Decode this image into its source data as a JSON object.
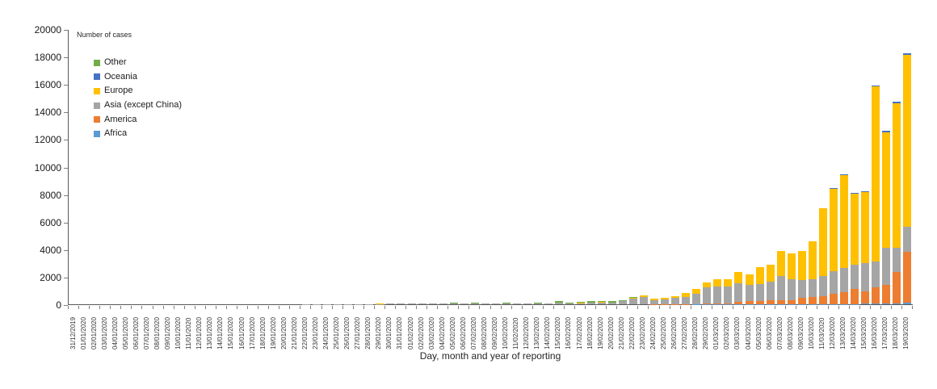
{
  "chart_data": {
    "type": "bar",
    "stacked": true,
    "title": "",
    "y_axis_title": "Number of cases",
    "x_axis_title": "Day, month and year of reporting",
    "ylim": [
      0,
      20000
    ],
    "y_tick_step": 2000,
    "y_ticks": [
      0,
      2000,
      4000,
      6000,
      8000,
      10000,
      12000,
      14000,
      16000,
      18000,
      20000
    ],
    "grid": false,
    "legend_position": "top-left-inside",
    "legend_order_top_to_bottom": [
      "Other",
      "Oceania",
      "Europe",
      "Asia (except China)",
      "America",
      "Africa"
    ],
    "categories": [
      "31/12/2019",
      "01/01/2020",
      "02/01/2020",
      "03/01/2020",
      "04/01/2020",
      "05/01/2020",
      "06/01/2020",
      "07/01/2020",
      "08/01/2020",
      "09/01/2020",
      "10/01/2020",
      "11/01/2020",
      "12/01/2020",
      "13/01/2020",
      "14/01/2020",
      "15/01/2020",
      "16/01/2020",
      "17/01/2020",
      "18/01/2020",
      "19/01/2020",
      "20/01/2020",
      "21/01/2020",
      "22/01/2020",
      "23/01/2020",
      "24/01/2020",
      "25/01/2020",
      "26/01/2020",
      "27/01/2020",
      "28/01/2020",
      "29/01/2020",
      "30/01/2020",
      "31/01/2020",
      "01/02/2020",
      "02/02/2020",
      "03/02/2020",
      "04/02/2020",
      "05/02/2020",
      "06/02/2020",
      "07/02/2020",
      "08/02/2020",
      "09/02/2020",
      "10/02/2020",
      "11/02/2020",
      "12/02/2020",
      "13/02/2020",
      "14/02/2020",
      "15/02/2020",
      "16/02/2020",
      "17/02/2020",
      "18/02/2020",
      "19/02/2020",
      "20/02/2020",
      "21/02/2020",
      "22/02/2020",
      "23/02/2020",
      "24/02/2020",
      "25/02/2020",
      "26/02/2020",
      "27/02/2020",
      "28/02/2020",
      "29/02/2020",
      "01/03/2020",
      "02/03/2020",
      "03/03/2020",
      "04/03/2020",
      "05/03/2020",
      "06/03/2020",
      "07/03/2020",
      "08/03/2020",
      "09/03/2020",
      "10/03/2020",
      "11/03/2020",
      "12/03/2020",
      "13/03/2020",
      "14/03/2020",
      "15/03/2020",
      "16/03/2020",
      "17/03/2020",
      "18/03/2020",
      "19/03/2020"
    ],
    "series": [
      {
        "name": "Africa",
        "color": "#5B9BD5",
        "values": [
          0,
          0,
          0,
          0,
          0,
          0,
          0,
          0,
          0,
          0,
          0,
          0,
          0,
          0,
          0,
          0,
          0,
          0,
          0,
          0,
          0,
          0,
          0,
          0,
          0,
          0,
          0,
          0,
          0,
          0,
          0,
          0,
          0,
          0,
          0,
          0,
          0,
          0,
          0,
          0,
          0,
          0,
          0,
          0,
          0,
          0,
          0,
          0,
          0,
          0,
          0,
          0,
          0,
          0,
          0,
          0,
          0,
          0,
          0,
          5,
          5,
          5,
          10,
          5,
          10,
          10,
          10,
          10,
          15,
          15,
          15,
          20,
          20,
          30,
          30,
          40,
          50,
          60,
          60,
          120
        ]
      },
      {
        "name": "America",
        "color": "#ED7D31",
        "values": [
          0,
          0,
          0,
          0,
          0,
          0,
          0,
          0,
          0,
          0,
          0,
          0,
          0,
          0,
          0,
          0,
          0,
          0,
          0,
          0,
          0,
          1,
          1,
          1,
          2,
          1,
          3,
          2,
          2,
          1,
          1,
          2,
          2,
          1,
          2,
          1,
          2,
          1,
          1,
          1,
          1,
          1,
          2,
          1,
          2,
          2,
          1,
          1,
          2,
          1,
          2,
          1,
          2,
          2,
          3,
          5,
          10,
          15,
          10,
          25,
          50,
          60,
          70,
          170,
          225,
          225,
          265,
          300,
          280,
          455,
          495,
          550,
          740,
          870,
          1065,
          920,
          1160,
          1340,
          2280,
          3680
        ]
      },
      {
        "name": "Asia (except China)",
        "color": "#A5A5A5",
        "values": [
          0,
          0,
          0,
          0,
          0,
          0,
          0,
          0,
          0,
          0,
          0,
          0,
          0,
          1,
          1,
          1,
          1,
          2,
          2,
          2,
          3,
          4,
          5,
          8,
          8,
          10,
          12,
          15,
          22,
          22,
          30,
          35,
          55,
          45,
          40,
          45,
          45,
          35,
          55,
          45,
          55,
          45,
          40,
          35,
          45,
          55,
          110,
          60,
          85,
          125,
          145,
          135,
          240,
          430,
          520,
          300,
          330,
          430,
          540,
          720,
          1160,
          1225,
          1210,
          1365,
          1175,
          1215,
          1365,
          1760,
          1545,
          1270,
          1325,
          1500,
          1660,
          1720,
          1760,
          2050,
          1900,
          2680,
          1760,
          1855
        ]
      },
      {
        "name": "Europe",
        "color": "#FFC000",
        "values": [
          0,
          0,
          0,
          0,
          0,
          0,
          0,
          0,
          0,
          0,
          0,
          0,
          0,
          0,
          0,
          0,
          0,
          0,
          0,
          0,
          0,
          0,
          0,
          0,
          3,
          2,
          0,
          1,
          5,
          8,
          2,
          8,
          10,
          5,
          5,
          2,
          2,
          3,
          5,
          8,
          3,
          5,
          3,
          2,
          2,
          3,
          15,
          2,
          3,
          2,
          3,
          3,
          5,
          58,
          127,
          110,
          120,
          150,
          250,
          340,
          370,
          510,
          545,
          790,
          780,
          1265,
          1215,
          1820,
          1840,
          2150,
          2740,
          4890,
          5970,
          6780,
          5180,
          5140,
          12750,
          8440,
          10530,
          12450
        ]
      },
      {
        "name": "Oceania",
        "color": "#4472C4",
        "values": [
          0,
          0,
          0,
          0,
          0,
          0,
          0,
          0,
          0,
          0,
          0,
          0,
          0,
          0,
          0,
          0,
          0,
          0,
          0,
          0,
          0,
          0,
          0,
          0,
          0,
          4,
          1,
          1,
          1,
          2,
          5,
          4,
          4,
          2,
          1,
          1,
          1,
          1,
          0,
          1,
          0,
          1,
          0,
          1,
          0,
          1,
          1,
          0,
          1,
          0,
          1,
          0,
          1,
          1,
          1,
          2,
          2,
          2,
          2,
          3,
          5,
          5,
          5,
          5,
          5,
          10,
          10,
          10,
          20,
          10,
          15,
          20,
          30,
          40,
          45,
          40,
          60,
          70,
          110,
          120
        ]
      },
      {
        "name": "Other",
        "color": "#70AD47",
        "values": [
          0,
          0,
          0,
          0,
          0,
          0,
          0,
          0,
          0,
          0,
          0,
          0,
          0,
          0,
          0,
          0,
          0,
          0,
          0,
          0,
          0,
          0,
          0,
          0,
          0,
          0,
          0,
          0,
          0,
          0,
          0,
          0,
          0,
          0,
          0,
          10,
          60,
          25,
          40,
          10,
          5,
          60,
          40,
          40,
          45,
          5,
          120,
          75,
          100,
          90,
          80,
          85,
          25,
          15,
          10,
          15,
          10,
          10,
          0,
          0,
          0,
          0,
          0,
          0,
          0,
          0,
          0,
          0,
          0,
          0,
          0,
          0,
          0,
          0,
          0,
          0,
          0,
          0,
          0,
          0
        ]
      }
    ]
  }
}
